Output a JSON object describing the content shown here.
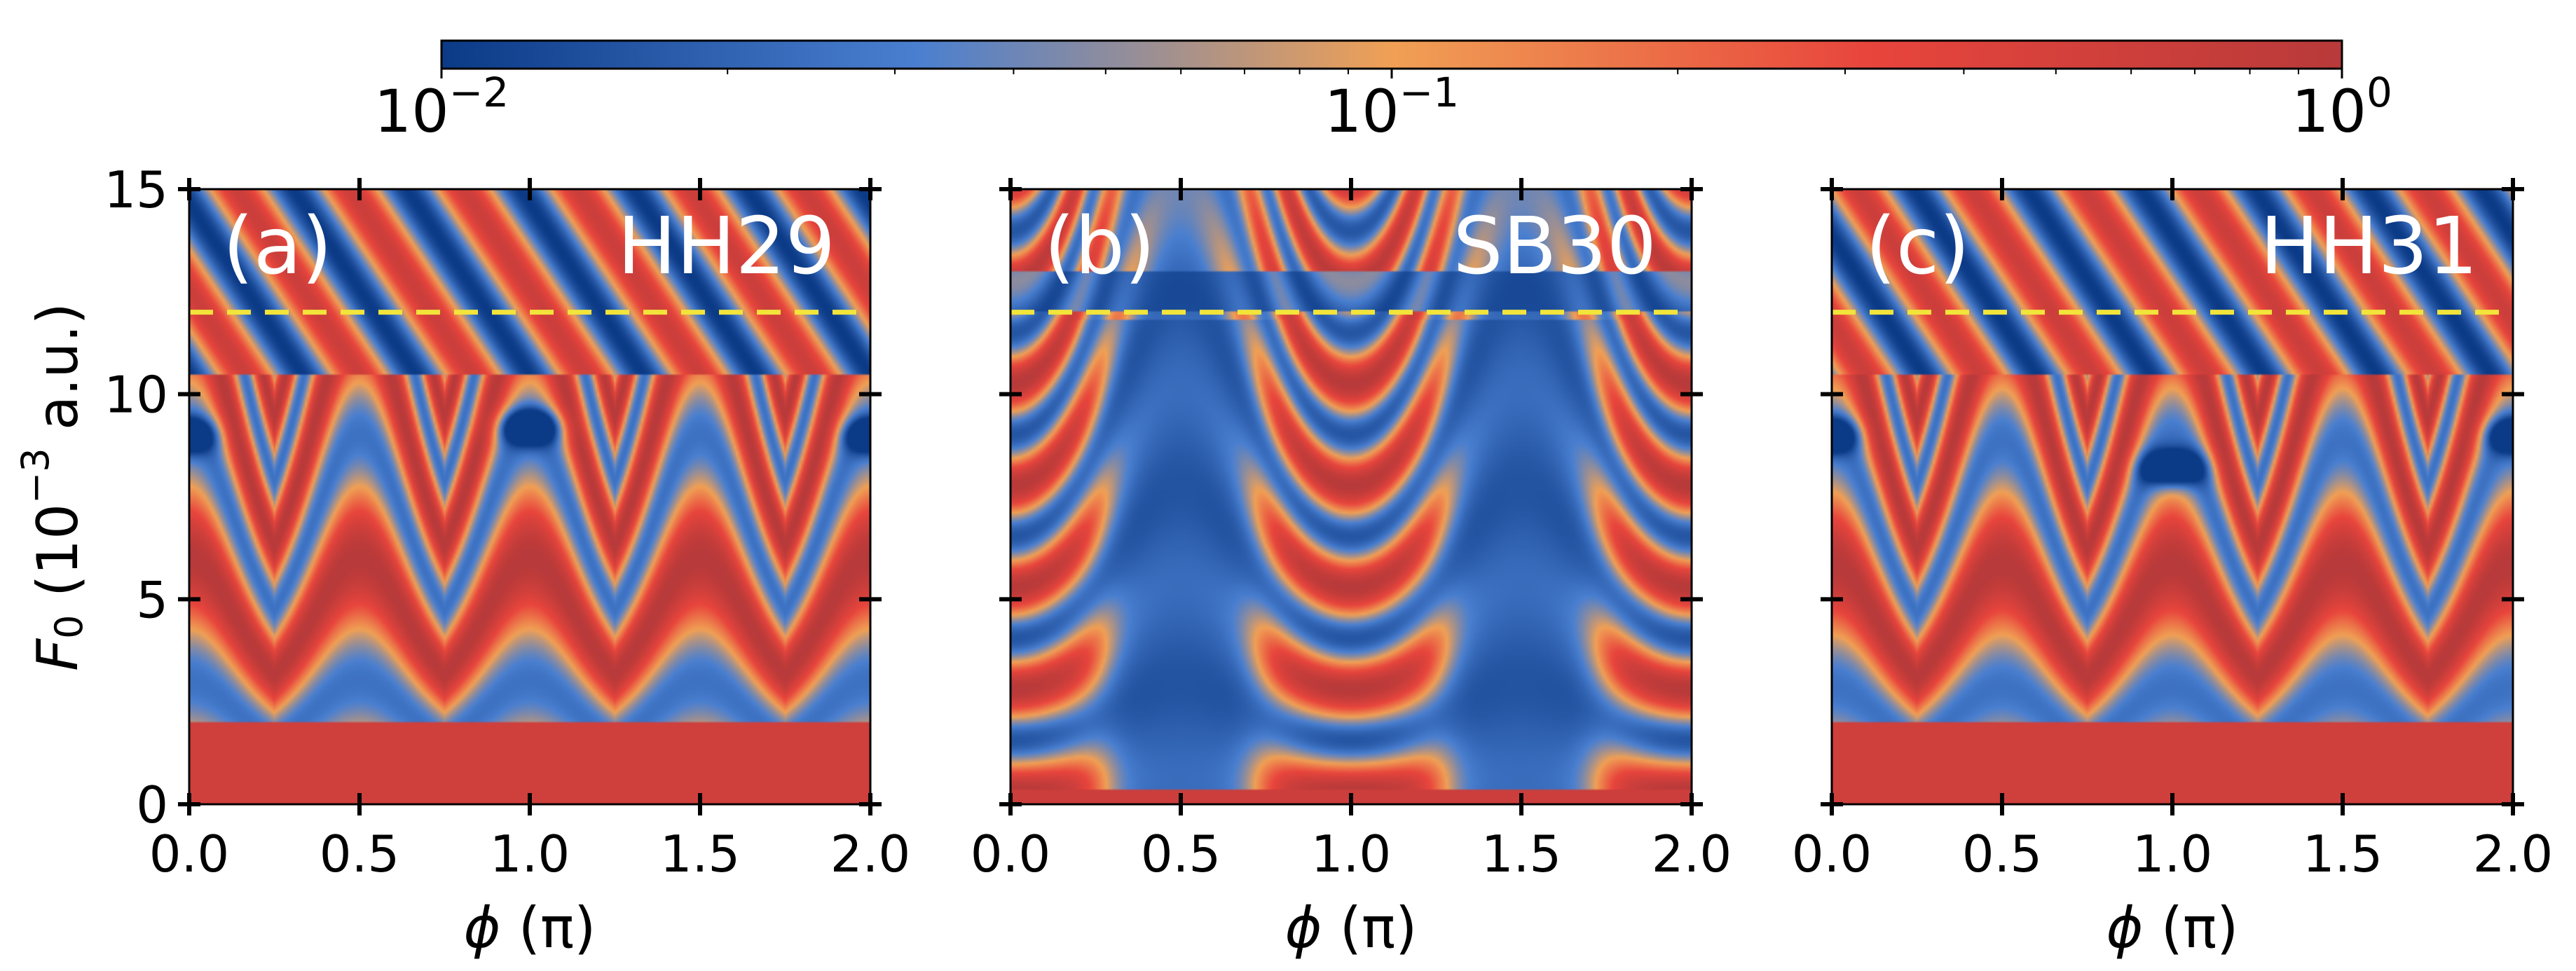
{
  "colors": {
    "cmap": [
      "#0b3a86",
      "#4a7fd0",
      "#f0a055",
      "#e8453c",
      "#b83a3a"
    ],
    "background": "#ffffff",
    "dashed_line": "#f2e43a",
    "panel_text": "#ffffff"
  },
  "chart_data": {
    "type": "heatmap",
    "layout": "three-panel",
    "colorbar": {
      "scale": "log",
      "range": [
        0.01,
        1
      ],
      "ticks": [
        0.01,
        0.1,
        1
      ],
      "tick_labels": [
        {
          "base": "10",
          "exp": "−2"
        },
        {
          "base": "10",
          "exp": "−1"
        },
        {
          "base": "10",
          "exp": "0"
        }
      ],
      "orientation": "horizontal",
      "placement": "top"
    },
    "xlabel": {
      "symbol": "ϕ",
      "unit": "(π)"
    },
    "ylabel": {
      "symbol": "F",
      "subscript": "0",
      "prefix": " (10",
      "exp": "−3",
      "suffix": " a.u.)"
    },
    "xlim": [
      0,
      2
    ],
    "ylim": [
      0,
      15
    ],
    "xticks": [
      0.0,
      0.5,
      1.0,
      1.5,
      2.0
    ],
    "xtick_labels": [
      "0.0",
      "0.5",
      "1.0",
      "1.5",
      "2.0"
    ],
    "yticks": [
      0,
      5,
      10,
      15
    ],
    "ytick_labels": [
      "0",
      "5",
      "10",
      "15"
    ],
    "reference_line": {
      "F0": 12,
      "style": "dashed",
      "color": "#f2e43a"
    },
    "panels": [
      {
        "letter": "(a)",
        "name": "HH29",
        "variant": "odd-a"
      },
      {
        "letter": "(b)",
        "name": "SB30",
        "variant": "even"
      },
      {
        "letter": "(c)",
        "name": "HH31",
        "variant": "odd-c"
      }
    ]
  }
}
